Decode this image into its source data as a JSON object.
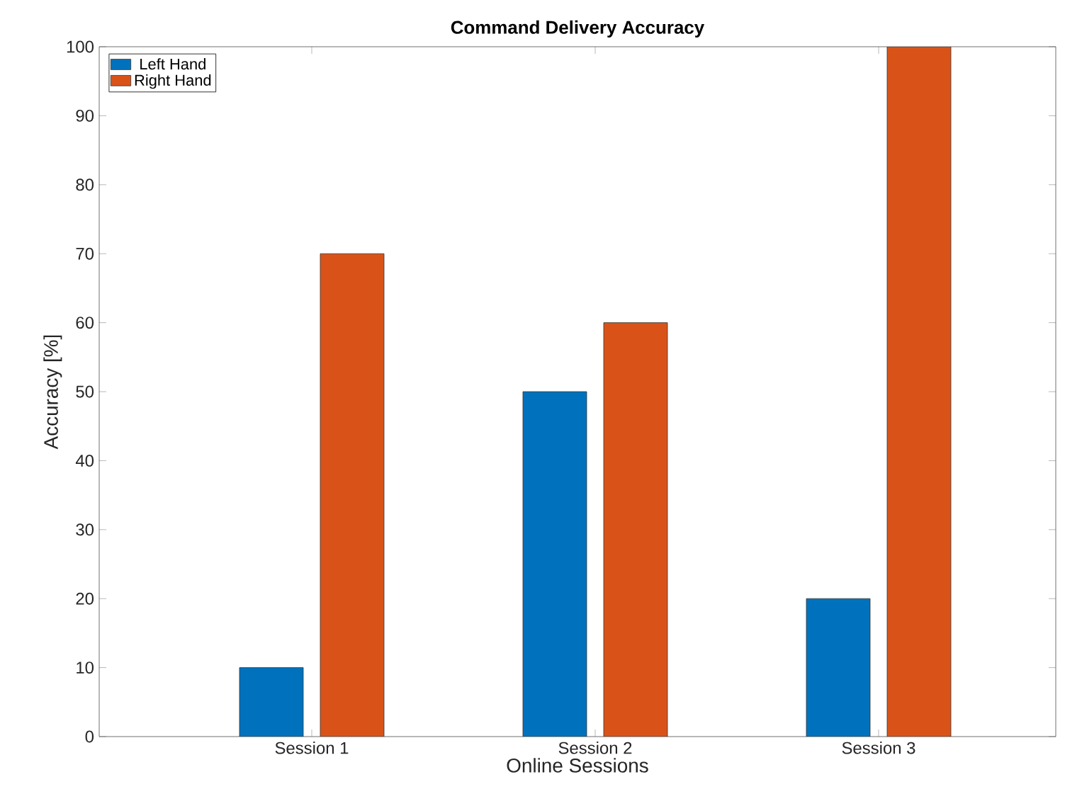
{
  "chart_data": {
    "type": "bar",
    "title": "Command Delivery Accuracy",
    "xlabel": "Online Sessions",
    "ylabel": "Accuracy [%]",
    "categories": [
      "Session 1",
      "Session 2",
      "Session 3"
    ],
    "series": [
      {
        "name": "Left Hand",
        "color": "#0072bd",
        "values": [
          10,
          50,
          20
        ]
      },
      {
        "name": "Right Hand",
        "color": "#d95319",
        "values": [
          70,
          60,
          100
        ]
      }
    ],
    "ylim": [
      0,
      100
    ],
    "yticks": [
      0,
      10,
      20,
      30,
      40,
      50,
      60,
      70,
      80,
      90,
      100
    ],
    "legend": "top left",
    "grid": false
  }
}
